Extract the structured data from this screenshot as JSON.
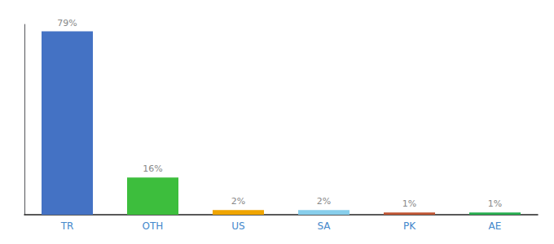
{
  "chart_data": {
    "type": "bar",
    "categories": [
      "TR",
      "OTH",
      "US",
      "SA",
      "PK",
      "AE"
    ],
    "values": [
      79,
      16,
      2,
      2,
      1,
      1
    ],
    "value_labels": [
      "79%",
      "16%",
      "2%",
      "2%",
      "1%",
      "1%"
    ],
    "colors": [
      "#4472C4",
      "#3DBE3D",
      "#F0A500",
      "#87CEEB",
      "#C05533",
      "#27AE50"
    ],
    "ylim": [
      0,
      82
    ],
    "data_labels": true,
    "tick_labels": "x",
    "grid": false
  }
}
